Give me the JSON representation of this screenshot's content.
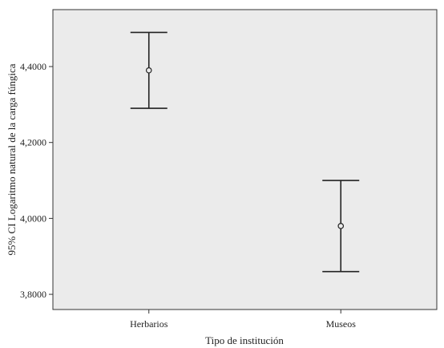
{
  "chart_data": {
    "type": "errorbar",
    "categories": [
      "Herbarios",
      "Museos"
    ],
    "means": [
      4.39,
      3.98
    ],
    "ci_lower": [
      4.29,
      3.86
    ],
    "ci_upper": [
      4.49,
      4.1
    ],
    "xlabel": "Tipo de institución",
    "ylabel": "95% CI Logaritmo natural de la carga fúngica",
    "ylim": [
      3.76,
      4.55
    ],
    "yticks": [
      3.8,
      4.0,
      4.2,
      4.4
    ],
    "ytick_labels": [
      "3,8000",
      "4,0000",
      "4,2000",
      "4,4000"
    ],
    "grid": false,
    "colors": {
      "plot_background": "#ebebeb",
      "bar": "#222222"
    }
  }
}
